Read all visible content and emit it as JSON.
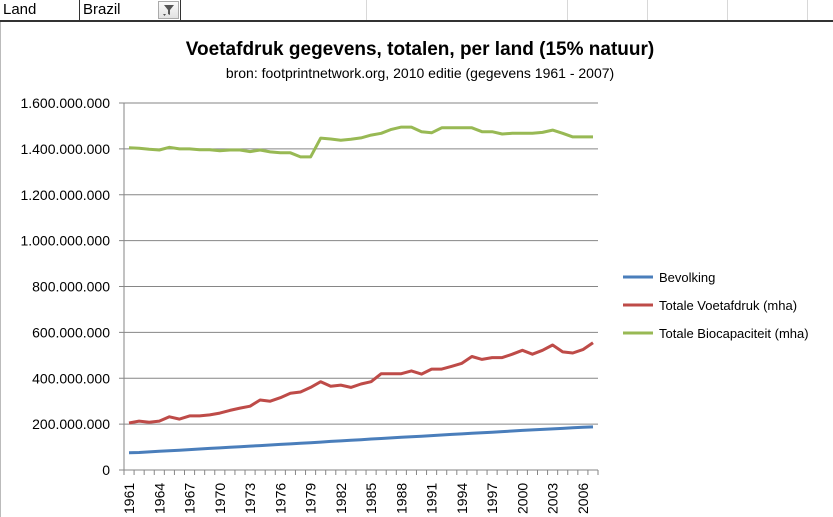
{
  "sheet": {
    "filter_label": "Land",
    "filter_value": "Brazil",
    "filter_icon": "filter-dropdown-icon"
  },
  "chart_data": {
    "type": "line",
    "title": "Voetafdruk gegevens, totalen, per land (15% natuur)",
    "subtitle": "bron: footprintnetwork.org, 2010 editie (gegevens 1961 - 2007)",
    "xlabel": "",
    "ylabel": "",
    "ylim": [
      0,
      1600000000
    ],
    "yticks": [
      "0",
      "200.000.000",
      "400.000.000",
      "600.000.000",
      "800.000.000",
      "1.000.000.000",
      "1.200.000.000",
      "1.400.000.000",
      "1.600.000.000"
    ],
    "xtick_labels": [
      "1961",
      "1964",
      "1967",
      "1970",
      "1973",
      "1976",
      "1979",
      "1982",
      "1985",
      "1988",
      "1991",
      "1994",
      "1997",
      "2000",
      "2003",
      "2006"
    ],
    "x": [
      1961,
      1962,
      1963,
      1964,
      1965,
      1966,
      1967,
      1968,
      1969,
      1970,
      1971,
      1972,
      1973,
      1974,
      1975,
      1976,
      1977,
      1978,
      1979,
      1980,
      1981,
      1982,
      1983,
      1984,
      1985,
      1986,
      1987,
      1988,
      1989,
      1990,
      1991,
      1992,
      1993,
      1994,
      1995,
      1996,
      1997,
      1998,
      1999,
      2000,
      2001,
      2002,
      2003,
      2004,
      2005,
      2006,
      2007
    ],
    "grid": "horizontal",
    "legend": "right",
    "series": [
      {
        "name": "Bevolking",
        "color": "#4a7ebb",
        "values": [
          75000000,
          76500000,
          79000000,
          81500000,
          84000000,
          86500000,
          89000000,
          91500000,
          94000000,
          96500000,
          99000000,
          101500000,
          104000000,
          106500000,
          109000000,
          111500000,
          114000000,
          116500000,
          119000000,
          121500000,
          124500000,
          127000000,
          129500000,
          132000000,
          135000000,
          137500000,
          140000000,
          142500000,
          145000000,
          147500000,
          150000000,
          152500000,
          155000000,
          157500000,
          160000000,
          162500000,
          165000000,
          167500000,
          170000000,
          172500000,
          175000000,
          177000000,
          179000000,
          181500000,
          184000000,
          186000000,
          188000000
        ]
      },
      {
        "name": "Totale Voetafdruk (mha)",
        "color": "#be4b48",
        "values": [
          205000000,
          213000000,
          208000000,
          213000000,
          232000000,
          222000000,
          236000000,
          236000000,
          240000000,
          248000000,
          260000000,
          270000000,
          278000000,
          305000000,
          300000000,
          315000000,
          335000000,
          340000000,
          360000000,
          385000000,
          365000000,
          370000000,
          360000000,
          375000000,
          385000000,
          420000000,
          420000000,
          420000000,
          432000000,
          418000000,
          440000000,
          440000000,
          452000000,
          465000000,
          495000000,
          482000000,
          490000000,
          490000000,
          505000000,
          522000000,
          505000000,
          522000000,
          545000000,
          515000000,
          510000000,
          525000000,
          555000000
        ]
      },
      {
        "name": "Totale Biocapaciteit (mha)",
        "color": "#98b954",
        "values": [
          1405000000,
          1403000000,
          1398000000,
          1395000000,
          1407000000,
          1400000000,
          1400000000,
          1396000000,
          1396000000,
          1392000000,
          1395000000,
          1395000000,
          1388000000,
          1395000000,
          1387000000,
          1383000000,
          1383000000,
          1365000000,
          1365000000,
          1447000000,
          1443000000,
          1438000000,
          1442000000,
          1448000000,
          1460000000,
          1468000000,
          1485000000,
          1495000000,
          1495000000,
          1475000000,
          1470000000,
          1492000000,
          1492000000,
          1492000000,
          1492000000,
          1475000000,
          1475000000,
          1465000000,
          1468000000,
          1468000000,
          1468000000,
          1472000000,
          1482000000,
          1468000000,
          1452000000,
          1452000000,
          1452000000
        ]
      }
    ]
  }
}
